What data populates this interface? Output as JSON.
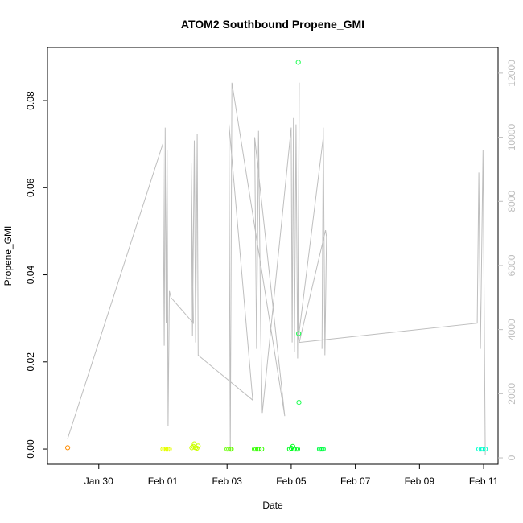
{
  "chart_data": {
    "type": "scatter",
    "title": "ATOM2 Southbound Propene_GMI",
    "xlabel": "Date",
    "ylabel": "Propene_GMI",
    "x_ticks": [
      "Jan 30",
      "Feb 01",
      "Feb 03",
      "Feb 05",
      "Feb 07",
      "Feb 09",
      "Feb 11"
    ],
    "x_tick_days": [
      1,
      3,
      5,
      7,
      9,
      11,
      13
    ],
    "xlim_days": [
      -0.6,
      13.45
    ],
    "ylim": [
      -0.0035,
      0.0922
    ],
    "y_ticks": [
      0.0,
      0.02,
      0.04,
      0.06,
      0.08
    ],
    "y_tick_labels": [
      "0.00",
      "0.02",
      "0.04",
      "0.06",
      "0.08"
    ],
    "y2lim": [
      -200,
      12800
    ],
    "y2_ticks": [
      0,
      2000,
      4000,
      6000,
      8000,
      10000,
      12000
    ],
    "y2_tick_labels": [
      "0",
      "2000",
      "4000",
      "6000",
      "8000",
      "10000",
      "12000"
    ],
    "colors": {
      "altitude_line": "#bebebe",
      "frame": "#000000"
    },
    "points": [
      {
        "day": 0.03,
        "value": 0.0003,
        "color": "#ff8c00"
      },
      {
        "day": 3.0,
        "value": 0.0,
        "color": "#e6ff00"
      },
      {
        "day": 3.05,
        "value": 0.0,
        "color": "#e6ff00"
      },
      {
        "day": 3.1,
        "value": 0.0,
        "color": "#e6ff00"
      },
      {
        "day": 3.15,
        "value": 0.0,
        "color": "#e6ff00"
      },
      {
        "day": 3.2,
        "value": 0.0,
        "color": "#e6ff00"
      },
      {
        "day": 3.9,
        "value": 0.0003,
        "color": "#ccff00"
      },
      {
        "day": 3.95,
        "value": 0.0006,
        "color": "#ccff00"
      },
      {
        "day": 3.98,
        "value": 0.0012,
        "color": "#ccff00"
      },
      {
        "day": 4.02,
        "value": 0.0003,
        "color": "#ccff00"
      },
      {
        "day": 4.06,
        "value": 0.0002,
        "color": "#ccff00"
      },
      {
        "day": 4.1,
        "value": 0.0007,
        "color": "#ccff00"
      },
      {
        "day": 5.0,
        "value": 0.0,
        "color": "#66ff00"
      },
      {
        "day": 5.05,
        "value": 0.0,
        "color": "#66ff00"
      },
      {
        "day": 5.1,
        "value": 0.0,
        "color": "#66ff00"
      },
      {
        "day": 5.13,
        "value": 0.0,
        "color": "#66ff00"
      },
      {
        "day": 5.85,
        "value": 0.0,
        "color": "#33ff00"
      },
      {
        "day": 5.9,
        "value": 0.0,
        "color": "#33ff00"
      },
      {
        "day": 5.95,
        "value": 0.0,
        "color": "#33ff00"
      },
      {
        "day": 6.0,
        "value": 0.0,
        "color": "#33ff00"
      },
      {
        "day": 6.08,
        "value": 0.0,
        "color": "#33ff00"
      },
      {
        "day": 6.95,
        "value": 0.0,
        "color": "#00ff22"
      },
      {
        "day": 7.0,
        "value": 0.0002,
        "color": "#00ff22"
      },
      {
        "day": 7.05,
        "value": 0.0006,
        "color": "#00ff22"
      },
      {
        "day": 7.1,
        "value": 0.0,
        "color": "#00ff22"
      },
      {
        "day": 7.15,
        "value": 0.0,
        "color": "#00ff22"
      },
      {
        "day": 7.2,
        "value": 0.0,
        "color": "#00ff22"
      },
      {
        "day": 7.22,
        "value": 0.0888,
        "color": "#22ff55"
      },
      {
        "day": 7.23,
        "value": 0.0265,
        "color": "#22ff55"
      },
      {
        "day": 7.24,
        "value": 0.0107,
        "color": "#22ff55"
      },
      {
        "day": 7.88,
        "value": 0.0,
        "color": "#00ff44"
      },
      {
        "day": 7.92,
        "value": 0.0,
        "color": "#00ff44"
      },
      {
        "day": 7.96,
        "value": 0.0,
        "color": "#00ff44"
      },
      {
        "day": 8.0,
        "value": 0.0,
        "color": "#00ff44"
      },
      {
        "day": 12.85,
        "value": 0.0,
        "color": "#00ffcc"
      },
      {
        "day": 12.92,
        "value": 0.0,
        "color": "#00ffcc"
      },
      {
        "day": 12.98,
        "value": 0.0,
        "color": "#00ffcc"
      },
      {
        "day": 13.05,
        "value": 0.0,
        "color": "#00ffcc"
      }
    ],
    "altitude_series": [
      [
        0.03,
        600
      ],
      [
        3.0,
        9800
      ],
      [
        3.04,
        3500
      ],
      [
        3.07,
        10300
      ],
      [
        3.1,
        4200
      ],
      [
        3.13,
        9600
      ],
      [
        3.16,
        1000
      ],
      [
        3.2,
        5200
      ],
      [
        3.25,
        5000
      ],
      [
        3.95,
        4200
      ],
      [
        3.88,
        9200
      ],
      [
        3.92,
        3800
      ],
      [
        3.98,
        9900
      ],
      [
        4.02,
        3600
      ],
      [
        4.07,
        10100
      ],
      [
        4.1,
        3200
      ],
      [
        5.8,
        1800
      ],
      [
        5.06,
        10400
      ],
      [
        5.1,
        200
      ],
      [
        5.15,
        11700
      ],
      [
        6.8,
        1300
      ],
      [
        5.86,
        10000
      ],
      [
        5.92,
        3400
      ],
      [
        5.98,
        10200
      ],
      [
        6.05,
        3800
      ],
      [
        6.1,
        1400
      ],
      [
        7.0,
        10300
      ],
      [
        7.03,
        3600
      ],
      [
        7.07,
        10600
      ],
      [
        7.1,
        3300
      ],
      [
        7.15,
        10400
      ],
      [
        7.2,
        3100
      ],
      [
        7.25,
        11700
      ],
      [
        7.22,
        3700
      ],
      [
        8.0,
        10000
      ],
      [
        7.96,
        3400
      ],
      [
        8.0,
        10300
      ],
      [
        8.05,
        3200
      ],
      [
        8.1,
        6900
      ],
      [
        8.07,
        7100
      ],
      [
        7.25,
        3600
      ],
      [
        12.8,
        4200
      ],
      [
        12.85,
        8900
      ],
      [
        12.9,
        3400
      ],
      [
        12.98,
        9600
      ],
      [
        13.05,
        100
      ]
    ]
  }
}
